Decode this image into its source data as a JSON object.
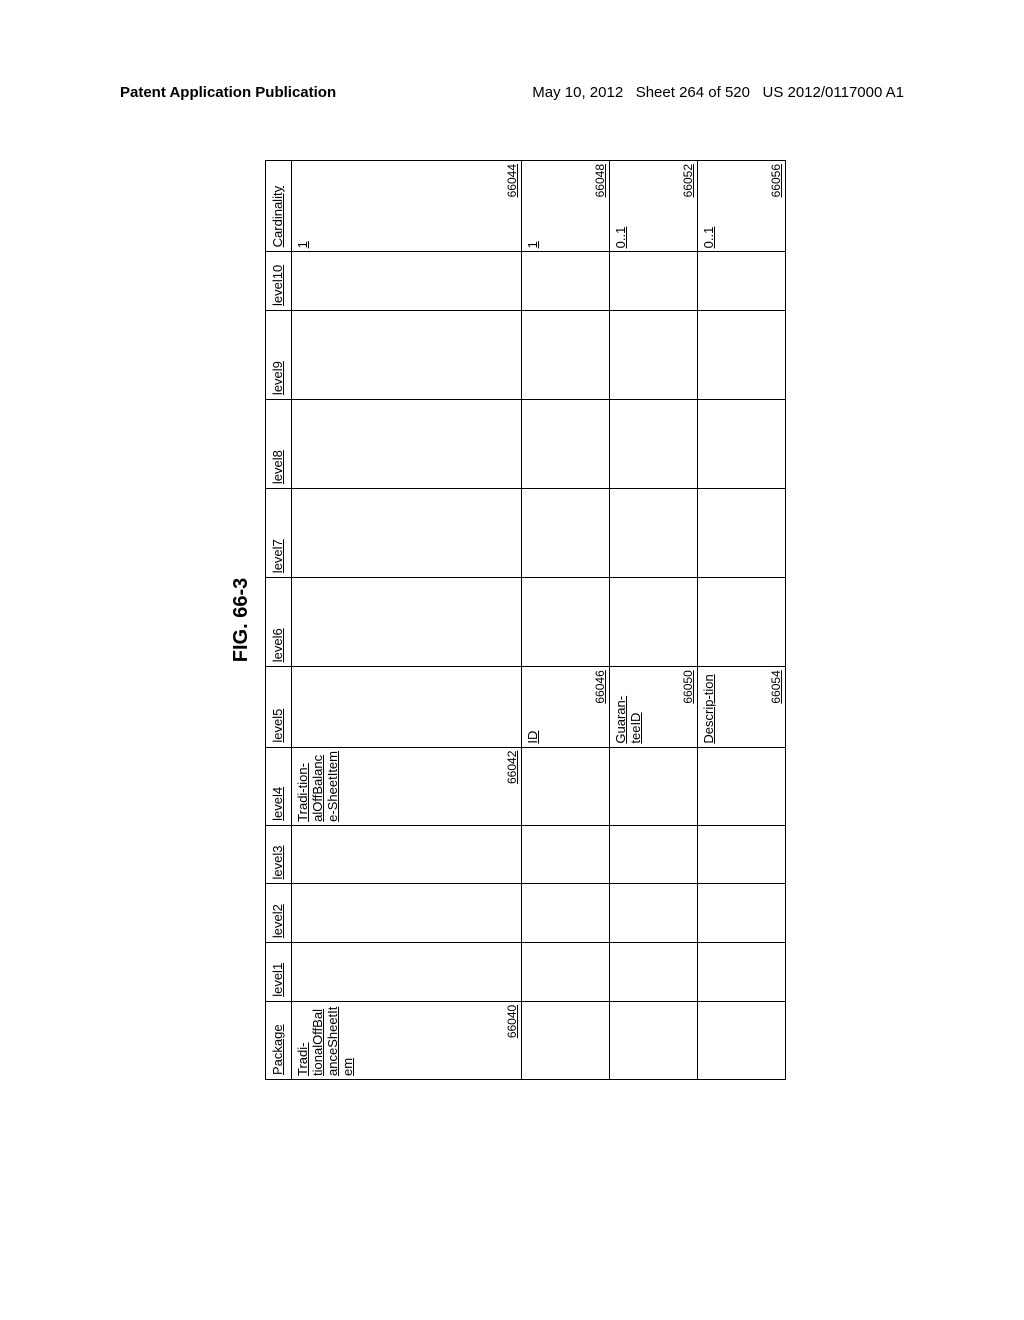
{
  "header": {
    "left": "Patent Application Publication",
    "date": "May 10, 2012",
    "sheet": "Sheet 264 of 520",
    "pubno": "US 2012/0117000 A1"
  },
  "figure_label": "FIG. 66-3",
  "table": {
    "columns": [
      "Package",
      "level1",
      "level2",
      "level3",
      "level4",
      "level5",
      "level6",
      "level7",
      "level8",
      "level9",
      "level10",
      "Cardinality"
    ],
    "rows": [
      {
        "package": {
          "text": "Tradi-tionalOffBalanceSheetItem",
          "ref": "66040"
        },
        "level4": {
          "text": "Tradi-tion-alOffBalance-SheetItem",
          "ref": "66042"
        },
        "card": {
          "text": "1",
          "ref": "66044"
        }
      },
      {
        "level5": {
          "text": "ID",
          "ref": "66046"
        },
        "card": {
          "text": "1",
          "ref": "66048"
        }
      },
      {
        "level5": {
          "text": "Guaran-teeID",
          "ref": "66050"
        },
        "card": {
          "text": "0..1",
          "ref": "66052"
        }
      },
      {
        "level5": {
          "text": "Descrip-tion",
          "ref": "66054"
        },
        "card": {
          "text": "0..1",
          "ref": "66056"
        }
      }
    ]
  }
}
